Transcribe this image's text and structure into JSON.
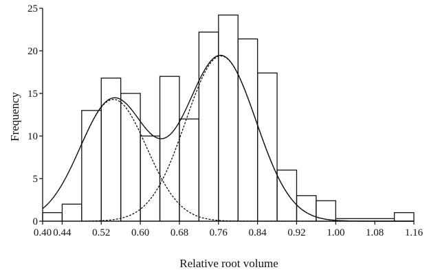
{
  "chart_data": {
    "type": "bar",
    "xlabel": "Relative root volume",
    "ylabel": "Frequency",
    "xlim": [
      0.4,
      1.16
    ],
    "ylim": [
      0,
      25
    ],
    "x_ticks": [
      "0.40",
      "0.44",
      "0.52",
      "0.60",
      "0.68",
      "0.76",
      "0.84",
      "0.92",
      "1.00",
      "1.08",
      "1.16"
    ],
    "y_ticks": [
      "0",
      "5",
      "10",
      "15",
      "20",
      "25"
    ],
    "bin_width": 0.04,
    "bins": [
      {
        "start": 0.4,
        "end": 0.44,
        "value": 1
      },
      {
        "start": 0.44,
        "end": 0.48,
        "value": 2
      },
      {
        "start": 0.48,
        "end": 0.52,
        "value": 13
      },
      {
        "start": 0.52,
        "end": 0.56,
        "value": 16.8
      },
      {
        "start": 0.56,
        "end": 0.6,
        "value": 15
      },
      {
        "start": 0.6,
        "end": 0.64,
        "value": 10
      },
      {
        "start": 0.64,
        "end": 0.68,
        "value": 17
      },
      {
        "start": 0.68,
        "end": 0.72,
        "value": 12
      },
      {
        "start": 0.72,
        "end": 0.76,
        "value": 22.2
      },
      {
        "start": 0.76,
        "end": 0.8,
        "value": 24.2
      },
      {
        "start": 0.8,
        "end": 0.84,
        "value": 21.4
      },
      {
        "start": 0.84,
        "end": 0.88,
        "value": 17.4
      },
      {
        "start": 0.88,
        "end": 0.92,
        "value": 6
      },
      {
        "start": 0.92,
        "end": 0.96,
        "value": 3
      },
      {
        "start": 0.96,
        "end": 1.0,
        "value": 2.4
      },
      {
        "start": 1.0,
        "end": 1.12,
        "value": 0.3
      },
      {
        "start": 1.12,
        "end": 1.16,
        "value": 1
      }
    ],
    "components": [
      {
        "mean": 0.545,
        "sd": 0.068,
        "peak": 14.3,
        "style": "dashed"
      },
      {
        "mean": 0.765,
        "sd": 0.072,
        "peak": 19.4,
        "style": "dashed"
      }
    ],
    "mixture": {
      "style": "solid"
    },
    "grid": false,
    "legend": "none"
  }
}
